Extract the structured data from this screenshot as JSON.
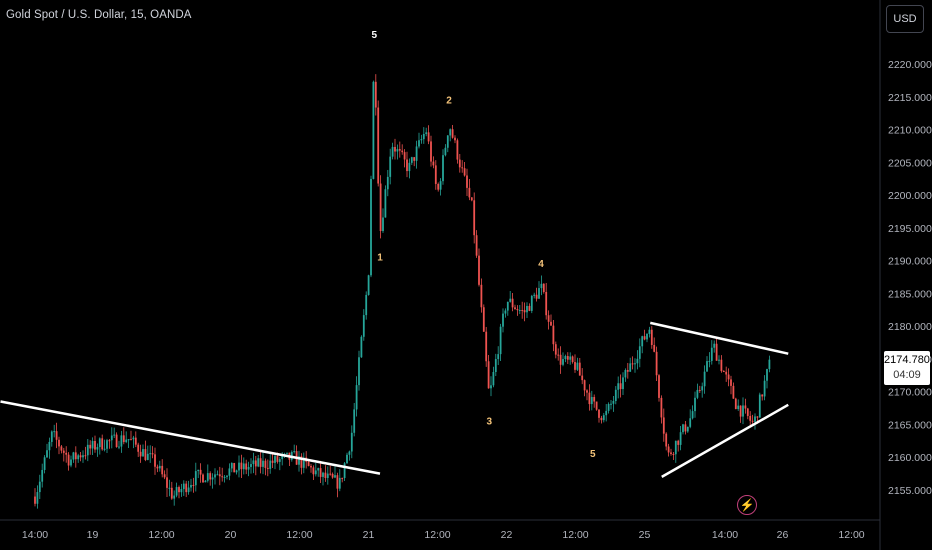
{
  "header": {
    "title": "Gold Spot / U.S. Dollar, 15, OANDA"
  },
  "toolbar": {
    "currency_label": "USD"
  },
  "price_tag": {
    "price": "2174.780",
    "countdown": "04:09"
  },
  "icons": {
    "lightning": "lightning-icon"
  },
  "colors": {
    "background": "#000000",
    "up": "#26a69a",
    "down": "#ef5350",
    "trendline": "#ffffff",
    "wave_label": "#f5c47a",
    "peak_label": "#ffffff"
  },
  "chart_data": {
    "type": "candlestick",
    "title": "Gold Spot / U.S. Dollar, 15, OANDA",
    "y_axis": {
      "side": "right",
      "ticks": [
        2155,
        2160,
        2165,
        2170,
        2175,
        2180,
        2185,
        2190,
        2195,
        2200,
        2205,
        2210,
        2215,
        2220
      ],
      "tick_labels": [
        "2155.000",
        "2160.000",
        "2165.000",
        "2170.000",
        "2175.000",
        "2180.000",
        "2185.000",
        "2190.000",
        "2195.000",
        "2200.000",
        "2205.000",
        "2210.000",
        "2215.000",
        "2220.000"
      ],
      "range": [
        2151,
        2228
      ]
    },
    "x_axis": {
      "tick_labels": [
        "14:00",
        "19",
        "12:00",
        "20",
        "12:00",
        "21",
        "12:00",
        "22",
        "12:00",
        "25",
        "14:00",
        "26",
        "12:00"
      ]
    },
    "last_price": 2174.78,
    "price_path": [
      {
        "x": "Mar 18 14:00",
        "y": 2154
      },
      {
        "x": "Mar 18 17:00",
        "y": 2163.5
      },
      {
        "x": "Mar 18 20:00",
        "y": 2159.5
      },
      {
        "x": "Mar 19 01:00",
        "y": 2162
      },
      {
        "x": "Mar 19 06:00",
        "y": 2163
      },
      {
        "x": "Mar 19 11:00",
        "y": 2159
      },
      {
        "x": "Mar 19 14:00",
        "y": 2154
      },
      {
        "x": "Mar 19 18:00",
        "y": 2157
      },
      {
        "x": "Mar 20 00:00",
        "y": 2158
      },
      {
        "x": "Mar 20 06:00",
        "y": 2159
      },
      {
        "x": "Mar 20 11:00",
        "y": 2160
      },
      {
        "x": "Mar 20 16:00",
        "y": 2157
      },
      {
        "x": "Mar 20 19:00",
        "y": 2156
      },
      {
        "x": "Mar 20 21:00",
        "y": 2163
      },
      {
        "x": "Mar 21 00:00",
        "y": 2188
      },
      {
        "x": "Mar 21 01:00",
        "y": 2222
      },
      {
        "x": "Mar 21 02:00",
        "y": 2194
      },
      {
        "x": "Mar 21 04:00",
        "y": 2208
      },
      {
        "x": "Mar 21 07:00",
        "y": 2204
      },
      {
        "x": "Mar 21 10:00",
        "y": 2210
      },
      {
        "x": "Mar 21 12:00",
        "y": 2200
      },
      {
        "x": "Mar 21 14:00",
        "y": 2211
      },
      {
        "x": "Mar 21 18:00",
        "y": 2198
      },
      {
        "x": "Mar 21 21:00",
        "y": 2169
      },
      {
        "x": "Mar 22 00:00",
        "y": 2184
      },
      {
        "x": "Mar 22 03:00",
        "y": 2182
      },
      {
        "x": "Mar 22 06:00",
        "y": 2186
      },
      {
        "x": "Mar 22 09:00",
        "y": 2175
      },
      {
        "x": "Mar 22 12:00",
        "y": 2174
      },
      {
        "x": "Mar 22 15:00",
        "y": 2168
      },
      {
        "x": "Mar 22 17:00",
        "y": 2166
      },
      {
        "x": "Mar 25 01:00",
        "y": 2180
      },
      {
        "x": "Mar 25 04:00",
        "y": 2160
      },
      {
        "x": "Mar 25 08:00",
        "y": 2166
      },
      {
        "x": "Mar 25 12:00",
        "y": 2177
      },
      {
        "x": "Mar 25 16:00",
        "y": 2168
      },
      {
        "x": "Mar 25 19:00",
        "y": 2165
      },
      {
        "x": "Mar 25 22:00",
        "y": 2175
      }
    ],
    "annotations": [
      {
        "text": "5",
        "x": "Mar 21 01:00",
        "y": 2224,
        "kind": "peak"
      },
      {
        "text": "1",
        "x": "Mar 21 02:00",
        "y": 2190,
        "kind": "wave"
      },
      {
        "text": "2",
        "x": "Mar 21 14:00",
        "y": 2214,
        "kind": "wave"
      },
      {
        "text": "3",
        "x": "Mar 21 21:00",
        "y": 2165,
        "kind": "wave"
      },
      {
        "text": "4",
        "x": "Mar 22 06:00",
        "y": 2189,
        "kind": "wave"
      },
      {
        "text": "5",
        "x": "Mar 22 15:00",
        "y": 2160,
        "kind": "wave"
      }
    ],
    "trendlines": [
      {
        "from": {
          "x": "Mar 18 08:00",
          "y": 2168.5
        },
        "to": {
          "x": "Mar 21 02:00",
          "y": 2157.5
        }
      },
      {
        "from": {
          "x": "Mar 25 01:00",
          "y": 2180.5
        },
        "to": {
          "x": "Mar 26 01:00",
          "y": 2175.8
        }
      },
      {
        "from": {
          "x": "Mar 25 03:00",
          "y": 2157
        },
        "to": {
          "x": "Mar 26 01:00",
          "y": 2168
        }
      }
    ],
    "grid": false,
    "legend": "none"
  }
}
